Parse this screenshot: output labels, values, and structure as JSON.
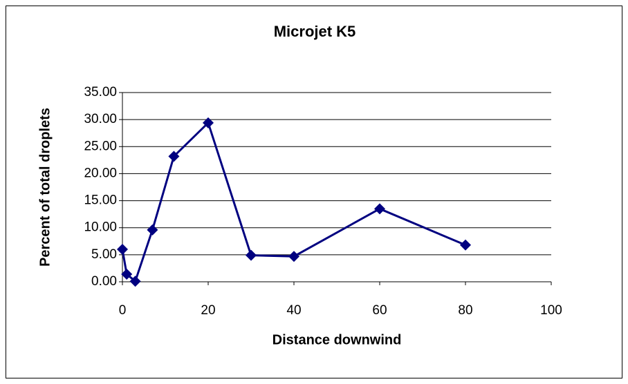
{
  "chart_data": {
    "type": "line",
    "title": "Microjet K5",
    "xlabel": "Distance downwind",
    "ylabel": "Percent of total droplets",
    "x": [
      0,
      1,
      3,
      7,
      12,
      20,
      30,
      40,
      60,
      80
    ],
    "series": [
      {
        "name": "Microjet K5",
        "color": "#000080",
        "values": [
          6.0,
          1.4,
          0.1,
          9.6,
          23.2,
          29.4,
          4.9,
          4.7,
          13.5,
          6.8
        ]
      }
    ],
    "xlim": [
      0,
      100
    ],
    "xticks": [
      0,
      20,
      40,
      60,
      80,
      100
    ],
    "ylim": [
      0,
      35
    ],
    "yticks": [
      {
        "value": 0,
        "label": "0.00"
      },
      {
        "value": 5,
        "label": "5.00"
      },
      {
        "value": 10,
        "label": "10.00"
      },
      {
        "value": 15,
        "label": "15.00"
      },
      {
        "value": 20,
        "label": "20.00"
      },
      {
        "value": 25,
        "label": "25.00"
      },
      {
        "value": 30,
        "label": "30.00"
      },
      {
        "value": 35,
        "label": "35.00"
      }
    ],
    "grid": true
  }
}
